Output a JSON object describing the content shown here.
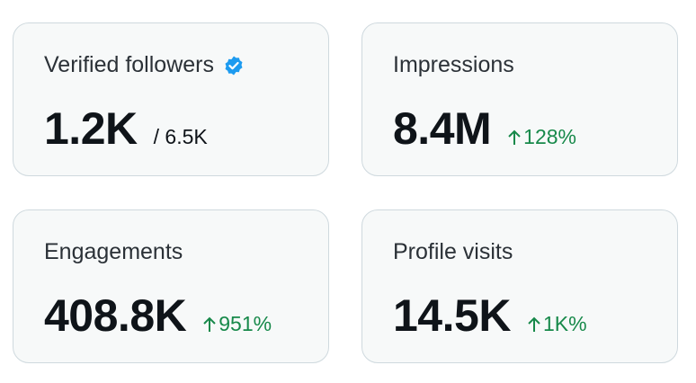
{
  "cards": [
    {
      "label": "Verified followers",
      "value": "1.2K",
      "total": "/ 6.5K"
    },
    {
      "label": "Impressions",
      "value": "8.4M",
      "change": "128%"
    },
    {
      "label": "Engagements",
      "value": "408.8K",
      "change": "951%"
    },
    {
      "label": "Profile visits",
      "value": "14.5K",
      "change": "1K%"
    }
  ]
}
